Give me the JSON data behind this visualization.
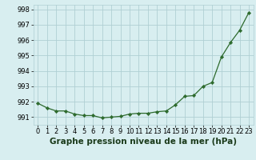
{
  "x": [
    0,
    1,
    2,
    3,
    4,
    5,
    6,
    7,
    8,
    9,
    10,
    11,
    12,
    13,
    14,
    15,
    16,
    17,
    18,
    19,
    20,
    21,
    22,
    23
  ],
  "y": [
    991.9,
    991.6,
    991.4,
    991.4,
    991.2,
    991.1,
    991.1,
    990.95,
    991.0,
    991.05,
    991.2,
    991.25,
    991.25,
    991.35,
    991.4,
    991.8,
    992.35,
    992.4,
    993.0,
    993.25,
    994.9,
    995.85,
    996.65,
    997.8
  ],
  "line_color": "#2d6a2d",
  "marker": "D",
  "marker_size": 2.2,
  "bg_color": "#d8eef0",
  "grid_color": "#b0cfd4",
  "title": "Graphe pression niveau de la mer (hPa)",
  "title_fontsize": 7.5,
  "title_fontweight": "bold",
  "tick_fontsize": 6.0,
  "ylim": [
    990.5,
    998.3
  ],
  "yticks": [
    991,
    992,
    993,
    994,
    995,
    996,
    997,
    998
  ],
  "xlim": [
    -0.5,
    23.5
  ],
  "xticks": [
    0,
    1,
    2,
    3,
    4,
    5,
    6,
    7,
    8,
    9,
    10,
    11,
    12,
    13,
    14,
    15,
    16,
    17,
    18,
    19,
    20,
    21,
    22,
    23
  ]
}
